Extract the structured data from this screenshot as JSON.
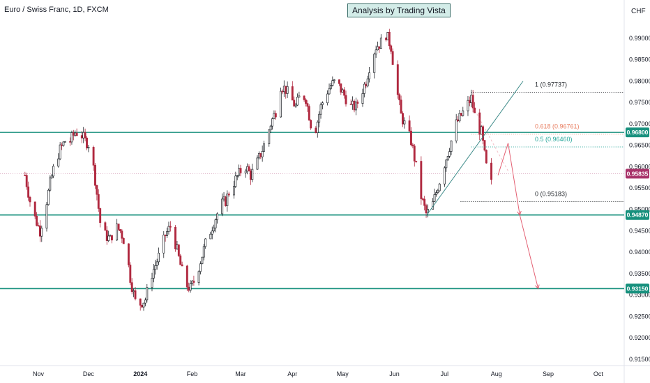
{
  "header": {
    "symbol_title": "Euro / Swiss Franc, 1D, FXCM",
    "banner": "Analysis by Trading Vista",
    "currency": "CHF"
  },
  "colors": {
    "up": "#1f2328",
    "down": "#b0283f",
    "level": "#18917e",
    "price_tag": "#a8336a",
    "fib_orange": "#e98266",
    "fib_teal": "#26a69a",
    "projection": "#e35f72",
    "trendline": "#3f8c8a"
  },
  "chart_data": {
    "type": "candlestick",
    "title": "Euro / Swiss Franc, 1D, FXCM",
    "y_axis": {
      "range": [
        0.9135,
        0.9965
      ],
      "ticks": [
        "0.99000",
        "0.98500",
        "0.98000",
        "0.97500",
        "0.97000",
        "0.96500",
        "0.96000",
        "0.95500",
        "0.95000",
        "0.94500",
        "0.94000",
        "0.93500",
        "0.93000",
        "0.92500",
        "0.92000",
        "0.91500"
      ]
    },
    "x_axis": {
      "ticks": [
        "Nov",
        "Dec",
        "2024",
        "Feb",
        "Mar",
        "Apr",
        "May",
        "Jun",
        "Jul",
        "Aug",
        "Sep",
        "Oct"
      ]
    },
    "price_series": [
      [
        "2023-10-24",
        0.958
      ],
      [
        "2023-10-27",
        0.952
      ],
      [
        "2023-10-30",
        0.948
      ],
      [
        "2023-11-02",
        0.945
      ],
      [
        "2023-11-05",
        0.95
      ],
      [
        "2023-11-08",
        0.956
      ],
      [
        "2023-11-11",
        0.961
      ],
      [
        "2023-11-14",
        0.964
      ],
      [
        "2023-11-17",
        0.966
      ],
      [
        "2023-11-20",
        0.966
      ],
      [
        "2023-11-23",
        0.968
      ],
      [
        "2023-11-26",
        0.968
      ],
      [
        "2023-11-29",
        0.966
      ],
      [
        "2023-12-02",
        0.965
      ],
      [
        "2023-12-05",
        0.957
      ],
      [
        "2023-12-08",
        0.947
      ],
      [
        "2023-12-11",
        0.944
      ],
      [
        "2023-12-14",
        0.943
      ],
      [
        "2023-12-17",
        0.946
      ],
      [
        "2023-12-20",
        0.945
      ],
      [
        "2023-12-23",
        0.942
      ],
      [
        "2023-12-26",
        0.934
      ],
      [
        "2023-12-29",
        0.9285
      ],
      [
        "2024-01-01",
        0.928
      ],
      [
        "2024-01-04",
        0.929
      ],
      [
        "2024-01-07",
        0.934
      ],
      [
        "2024-01-10",
        0.937
      ],
      [
        "2024-01-13",
        0.94
      ],
      [
        "2024-01-16",
        0.944
      ],
      [
        "2024-01-19",
        0.946
      ],
      [
        "2024-01-22",
        0.942
      ],
      [
        "2024-01-25",
        0.937
      ],
      [
        "2024-01-28",
        0.9325
      ],
      [
        "2024-01-31",
        0.9315
      ],
      [
        "2024-02-03",
        0.934
      ],
      [
        "2024-02-06",
        0.938
      ],
      [
        "2024-02-09",
        0.942
      ],
      [
        "2024-02-12",
        0.945
      ],
      [
        "2024-02-15",
        0.948
      ],
      [
        "2024-02-18",
        0.951
      ],
      [
        "2024-02-21",
        0.952
      ],
      [
        "2024-02-24",
        0.955
      ],
      [
        "2024-02-27",
        0.957
      ],
      [
        "2024-03-01",
        0.959
      ],
      [
        "2024-03-04",
        0.96
      ],
      [
        "2024-03-07",
        0.958
      ],
      [
        "2024-03-10",
        0.96
      ],
      [
        "2024-03-13",
        0.963
      ],
      [
        "2024-03-16",
        0.966
      ],
      [
        "2024-03-19",
        0.97
      ],
      [
        "2024-03-22",
        0.973
      ],
      [
        "2024-03-25",
        0.979
      ],
      [
        "2024-03-28",
        0.978
      ],
      [
        "2024-03-31",
        0.976
      ],
      [
        "2024-04-03",
        0.974
      ],
      [
        "2024-04-06",
        0.977
      ],
      [
        "2024-04-09",
        0.976
      ],
      [
        "2024-04-12",
        0.97
      ],
      [
        "2024-04-15",
        0.969
      ],
      [
        "2024-04-18",
        0.974
      ],
      [
        "2024-04-21",
        0.977
      ],
      [
        "2024-04-24",
        0.979
      ],
      [
        "2024-04-27",
        0.98
      ],
      [
        "2024-04-30",
        0.978
      ],
      [
        "2024-05-03",
        0.976
      ],
      [
        "2024-05-06",
        0.974
      ],
      [
        "2024-05-09",
        0.974
      ],
      [
        "2024-05-12",
        0.977
      ],
      [
        "2024-05-15",
        0.98
      ],
      [
        "2024-05-18",
        0.985
      ],
      [
        "2024-05-21",
        0.988
      ],
      [
        "2024-05-24",
        0.989
      ],
      [
        "2024-05-27",
        0.991
      ],
      [
        "2024-05-30",
        0.988
      ],
      [
        "2024-06-02",
        0.979
      ],
      [
        "2024-06-05",
        0.972
      ],
      [
        "2024-06-08",
        0.969
      ],
      [
        "2024-06-11",
        0.966
      ],
      [
        "2024-06-14",
        0.96
      ],
      [
        "2024-06-17",
        0.953
      ],
      [
        "2024-06-20",
        0.949
      ],
      [
        "2024-06-23",
        0.95
      ],
      [
        "2024-06-26",
        0.954
      ],
      [
        "2024-06-29",
        0.958
      ],
      [
        "2024-07-02",
        0.962
      ],
      [
        "2024-07-05",
        0.966
      ],
      [
        "2024-07-08",
        0.97
      ],
      [
        "2024-07-11",
        0.972
      ],
      [
        "2024-07-14",
        0.974
      ],
      [
        "2024-07-17",
        0.976
      ],
      [
        "2024-07-20",
        0.97
      ],
      [
        "2024-07-23",
        0.968
      ],
      [
        "2024-07-26",
        0.96
      ],
      [
        "2024-07-29",
        0.956
      ]
    ],
    "horizontal_levels": [
      0.968,
      0.9487,
      0.9315
    ],
    "current_price": 0.95835,
    "price_tags": [
      "0.96800",
      "0.95835",
      "0.94870",
      "0.93150"
    ],
    "fibonacci": [
      {
        "label": "1 (0.97737)",
        "value": 0.97737
      },
      {
        "label": "0.618 (0.96761)",
        "value": 0.96761
      },
      {
        "label": "0.5 (0.96460)",
        "value": 0.9646
      },
      {
        "label": "0 (0.95183)",
        "value": 0.95183
      }
    ],
    "trendline": [
      [
        "2024-06-20",
        0.9485
      ],
      [
        "2024-08-17",
        0.98
      ]
    ],
    "projection_path": [
      [
        "2024-08-02",
        0.958
      ],
      [
        "2024-08-08",
        0.9655
      ],
      [
        "2024-08-15",
        0.9487
      ],
      [
        "2024-08-26",
        0.9315
      ]
    ],
    "grid": false,
    "legend": "none"
  }
}
